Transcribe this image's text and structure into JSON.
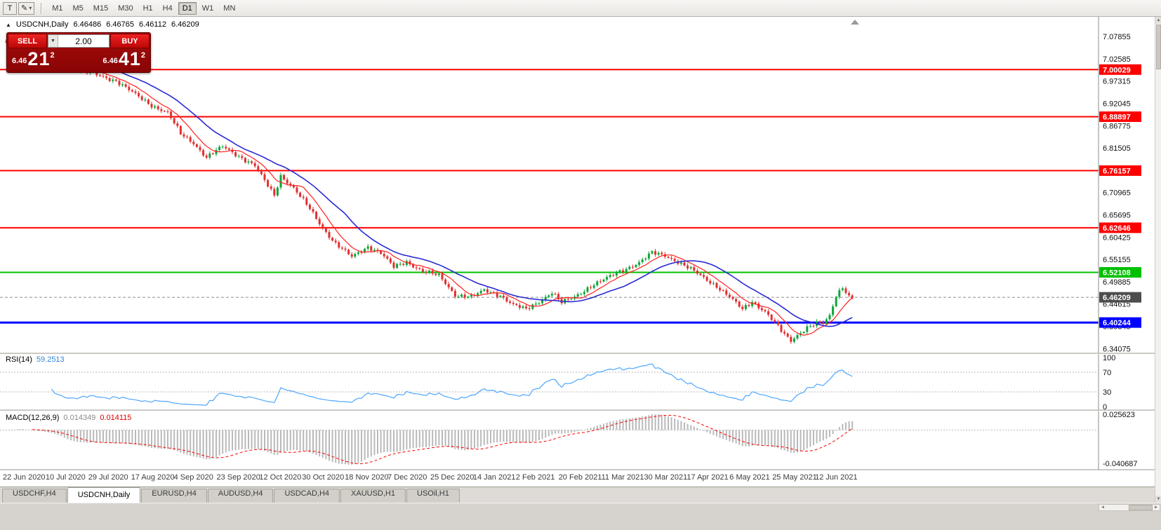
{
  "icons": {
    "dropdown": "▾",
    "dropdown_small": "▼",
    "panel_toggle": "▲",
    "scroll_up": "▲",
    "scroll_down": "▼",
    "scroll_left": "◄",
    "scroll_right": "►"
  },
  "toolbar": {
    "tools": [
      {
        "name": "text-tool",
        "glyph": "T"
      },
      {
        "name": "drawing-tool",
        "glyph": "✎"
      }
    ],
    "timeframes": [
      "M1",
      "M5",
      "M15",
      "M30",
      "H1",
      "H4",
      "D1",
      "W1",
      "MN"
    ],
    "active_timeframe": "D1"
  },
  "trade_panel": {
    "sell_label": "SELL",
    "buy_label": "BUY",
    "volume": "2.00",
    "bid": {
      "small": "6.46",
      "big": "21",
      "sup": "2"
    },
    "ask": {
      "small": "6.46",
      "big": "41",
      "sup": "2"
    },
    "accent_red": "#a50b0b"
  },
  "chart": {
    "ohlc": {
      "symbol": "USDCNH,Daily",
      "open": "6.46486",
      "high": "6.46765",
      "low": "6.46112",
      "close": "6.46209"
    },
    "price_axis": [
      "7.07855",
      "7.02585",
      "6.97315",
      "6.92045",
      "6.86775",
      "6.81505",
      "6.76235",
      "6.70965",
      "6.65695",
      "6.60425",
      "6.55155",
      "6.49885",
      "6.44615",
      "6.39345",
      "6.34075"
    ],
    "hlines": [
      {
        "price": 7.00029,
        "label": "7.00029",
        "color": "#ff0000",
        "weight": 2
      },
      {
        "price": 6.88897,
        "label": "6.88897",
        "color": "#ff0000",
        "weight": 2
      },
      {
        "price": 6.76157,
        "label": "6.76157",
        "color": "#ff0000",
        "weight": 2
      },
      {
        "price": 6.62646,
        "label": "6.62646",
        "color": "#ff0000",
        "weight": 2
      },
      {
        "price": 6.52108,
        "label": "6.52108",
        "color": "#00c000",
        "weight": 2
      },
      {
        "price": 6.40244,
        "label": "6.40244",
        "color": "#0000ff",
        "weight": 3
      }
    ],
    "current_price": {
      "value": 6.46209,
      "label": "6.46209",
      "color": "#4d4d4d"
    },
    "date_axis": [
      "22 Jun 2020",
      "10 Jul 2020",
      "29 Jul 2020",
      "17 Aug 2020",
      "4 Sep 2020",
      "23 Sep 2020",
      "12 Oct 2020",
      "30 Oct 2020",
      "18 Nov 2020",
      "7 Dec 2020",
      "25 Dec 2020",
      "14 Jan 2021",
      "2 Feb 2021",
      "20 Feb 2021",
      "11 Mar 2021",
      "30 Mar 2021",
      "17 Apr 2021",
      "6 May 2021",
      "25 May 2021",
      "12 Jun 2021"
    ]
  },
  "indicators": {
    "rsi": {
      "label": "RSI(14)",
      "value": "59.2513",
      "period": 14,
      "levels": [
        "100",
        "70",
        "30",
        "0"
      ],
      "line_color": "#4da6ff"
    },
    "macd": {
      "label": "MACD(12,26,9)",
      "value_main": "0.014349",
      "value_signal": "0.014115",
      "scale": [
        "0.025623",
        "-0.040687"
      ],
      "hist_color": "#b9b9b9",
      "signal_color": "#ff0000"
    }
  },
  "chart_data": {
    "type": "candlestick",
    "symbol": "USDCNH",
    "timeframe": "Daily",
    "ohlc_current": {
      "open": 6.46486,
      "high": 6.46765,
      "low": 6.46112,
      "close": 6.46209
    },
    "y_range": [
      6.333,
      7.125
    ],
    "bars": 263,
    "price_path": [
      [
        0,
        7.063
      ],
      [
        4,
        7.074
      ],
      [
        9,
        7.058
      ],
      [
        14,
        7.044
      ],
      [
        19,
        7.006
      ],
      [
        24,
        6.996
      ],
      [
        29,
        6.986
      ],
      [
        34,
        6.974
      ],
      [
        40,
        6.941
      ],
      [
        45,
        6.916
      ],
      [
        50,
        6.898
      ],
      [
        54,
        6.848
      ],
      [
        58,
        6.827
      ],
      [
        62,
        6.793
      ],
      [
        67,
        6.818
      ],
      [
        72,
        6.796
      ],
      [
        77,
        6.773
      ],
      [
        80,
        6.737
      ],
      [
        83,
        6.703
      ],
      [
        85,
        6.75
      ],
      [
        89,
        6.72
      ],
      [
        94,
        6.671
      ],
      [
        98,
        6.626
      ],
      [
        102,
        6.589
      ],
      [
        107,
        6.557
      ],
      [
        112,
        6.582
      ],
      [
        116,
        6.567
      ],
      [
        120,
        6.533
      ],
      [
        124,
        6.546
      ],
      [
        129,
        6.524
      ],
      [
        134,
        6.513
      ],
      [
        139,
        6.468
      ],
      [
        144,
        6.463
      ],
      [
        148,
        6.478
      ],
      [
        153,
        6.467
      ],
      [
        157,
        6.444
      ],
      [
        161,
        6.433
      ],
      [
        165,
        6.452
      ],
      [
        169,
        6.474
      ],
      [
        172,
        6.449
      ],
      [
        176,
        6.463
      ],
      [
        181,
        6.489
      ],
      [
        186,
        6.507
      ],
      [
        191,
        6.527
      ],
      [
        196,
        6.544
      ],
      [
        200,
        6.567
      ],
      [
        204,
        6.561
      ],
      [
        208,
        6.546
      ],
      [
        212,
        6.528
      ],
      [
        216,
        6.508
      ],
      [
        220,
        6.489
      ],
      [
        224,
        6.463
      ],
      [
        228,
        6.433
      ],
      [
        231,
        6.452
      ],
      [
        235,
        6.429
      ],
      [
        238,
        6.402
      ],
      [
        241,
        6.373
      ],
      [
        243,
        6.359
      ],
      [
        245,
        6.373
      ],
      [
        248,
        6.392
      ],
      [
        251,
        6.401
      ],
      [
        253,
        6.399
      ],
      [
        255,
        6.417
      ],
      [
        257,
        6.466
      ],
      [
        259,
        6.487
      ],
      [
        260,
        6.477
      ],
      [
        261,
        6.465
      ],
      [
        262,
        6.462
      ]
    ],
    "colors": {
      "up": "#0fa53a",
      "down": "#e03030"
    },
    "moving_averages": [
      {
        "name": "ma-fast",
        "period": 8,
        "color": "#ff1f1f"
      },
      {
        "name": "ma-slow",
        "period": 21,
        "color": "#2a2ad4"
      }
    ]
  },
  "tab_bar": {
    "tabs": [
      {
        "label": "USDCHF,H4",
        "active": false
      },
      {
        "label": "USDCNH,Daily",
        "active": true
      },
      {
        "label": "EURUSD,H4",
        "active": false
      },
      {
        "label": "AUDUSD,H4",
        "active": false
      },
      {
        "label": "USDCAD,H4",
        "active": false
      },
      {
        "label": "XAUUSD,H1",
        "active": false
      },
      {
        "label": "USOil,H1",
        "active": false
      }
    ]
  }
}
